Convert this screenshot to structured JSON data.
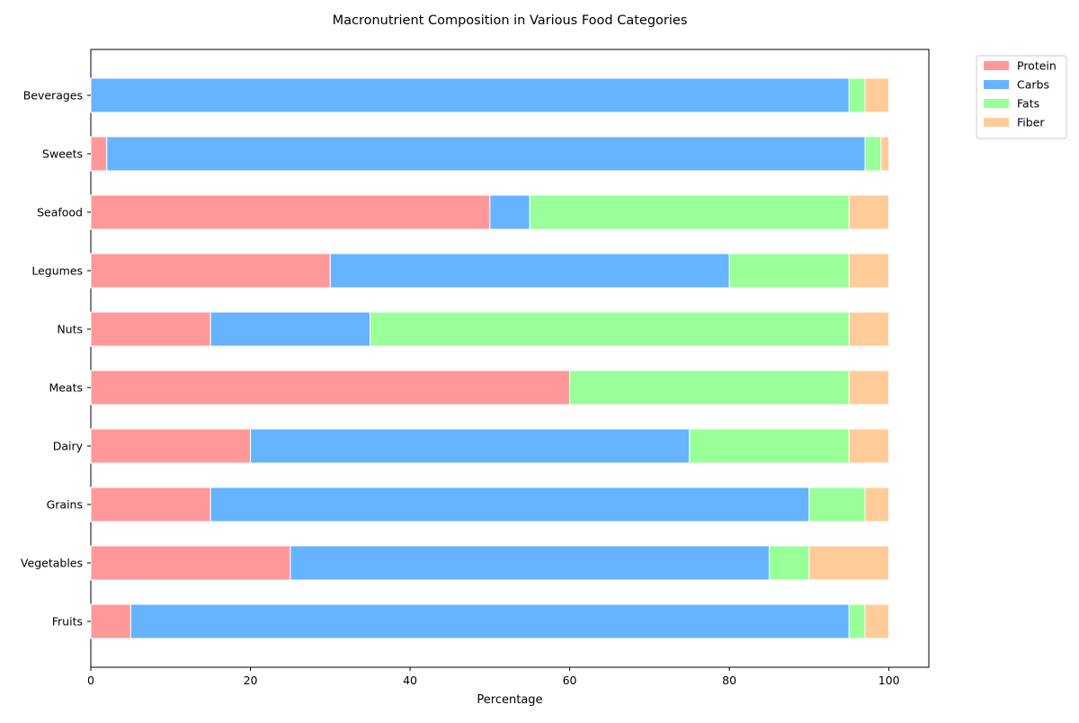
{
  "chart_data": {
    "type": "bar",
    "orientation": "horizontal",
    "stacked": true,
    "title": "Macronutrient Composition in Various Food Categories",
    "xlabel": "Percentage",
    "ylabel": "",
    "xlim": [
      0,
      105
    ],
    "xticks": [
      "0",
      "20",
      "40",
      "60",
      "80",
      "100"
    ],
    "categories": [
      "Fruits",
      "Vegetables",
      "Grains",
      "Dairy",
      "Meats",
      "Nuts",
      "Legumes",
      "Seafood",
      "Sweets",
      "Beverages"
    ],
    "series": [
      {
        "name": "Protein",
        "color": "#ff9999",
        "values": [
          5,
          25,
          15,
          20,
          60,
          15,
          30,
          50,
          2,
          0
        ]
      },
      {
        "name": "Carbs",
        "color": "#66b3ff",
        "values": [
          90,
          60,
          75,
          55,
          0,
          20,
          50,
          5,
          95,
          95
        ]
      },
      {
        "name": "Fats",
        "color": "#99ff99",
        "values": [
          2,
          5,
          7,
          20,
          35,
          60,
          15,
          40,
          2,
          2
        ]
      },
      {
        "name": "Fiber",
        "color": "#ffcc99",
        "values": [
          3,
          10,
          3,
          5,
          5,
          5,
          5,
          5,
          1,
          3
        ]
      }
    ],
    "legend": "upper-right-outside",
    "grid": false
  }
}
